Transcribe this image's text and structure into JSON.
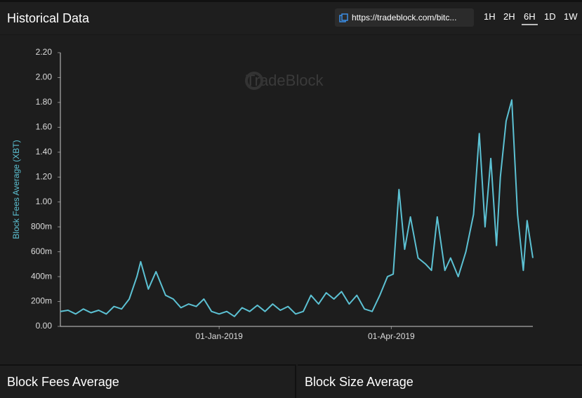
{
  "header": {
    "title": "Historical Data",
    "url": "https://tradeblock.com/bitc...",
    "ranges": [
      "1H",
      "2H",
      "6H",
      "1D",
      "1W"
    ],
    "selected_range": "6H"
  },
  "watermark": "TradeBlock",
  "chart_data": {
    "type": "line",
    "y_label": "Block Fees Average (XBT)",
    "x": [
      "2018-10-10",
      "2018-10-14",
      "2018-10-18",
      "2018-10-22",
      "2018-10-26",
      "2018-10-30",
      "2018-11-03",
      "2018-11-07",
      "2018-11-11",
      "2018-11-15",
      "2018-11-19",
      "2018-11-21",
      "2018-11-25",
      "2018-11-29",
      "2018-12-04",
      "2018-12-08",
      "2018-12-12",
      "2018-12-16",
      "2018-12-20",
      "2018-12-24",
      "2018-12-28",
      "2019-01-01",
      "2019-01-05",
      "2019-01-09",
      "2019-01-13",
      "2019-01-17",
      "2019-01-21",
      "2019-01-25",
      "2019-01-29",
      "2019-02-02",
      "2019-02-06",
      "2019-02-10",
      "2019-02-14",
      "2019-02-18",
      "2019-02-22",
      "2019-02-26",
      "2019-03-02",
      "2019-03-06",
      "2019-03-10",
      "2019-03-14",
      "2019-03-18",
      "2019-03-22",
      "2019-03-26",
      "2019-03-30",
      "2019-04-02",
      "2019-04-05",
      "2019-04-08",
      "2019-04-11",
      "2019-04-15",
      "2019-04-19",
      "2019-04-22",
      "2019-04-25",
      "2019-04-29",
      "2019-05-02",
      "2019-05-06",
      "2019-05-10",
      "2019-05-14",
      "2019-05-17",
      "2019-05-20",
      "2019-05-23",
      "2019-05-26",
      "2019-05-28",
      "2019-05-31",
      "2019-06-03",
      "2019-06-06",
      "2019-06-09",
      "2019-06-11",
      "2019-06-14"
    ],
    "series": [
      {
        "name": "Block Fees Average",
        "color": "#5cc1d3",
        "values": [
          0.12,
          0.13,
          0.1,
          0.14,
          0.11,
          0.13,
          0.1,
          0.16,
          0.14,
          0.22,
          0.4,
          0.52,
          0.3,
          0.44,
          0.25,
          0.22,
          0.15,
          0.18,
          0.16,
          0.22,
          0.12,
          0.1,
          0.12,
          0.08,
          0.15,
          0.12,
          0.17,
          0.12,
          0.18,
          0.13,
          0.16,
          0.1,
          0.12,
          0.25,
          0.18,
          0.27,
          0.22,
          0.28,
          0.18,
          0.25,
          0.14,
          0.12,
          0.25,
          0.4,
          0.42,
          1.1,
          0.62,
          0.88,
          0.55,
          0.5,
          0.45,
          0.88,
          0.45,
          0.55,
          0.4,
          0.6,
          0.9,
          1.55,
          0.8,
          1.35,
          0.65,
          1.2,
          1.65,
          1.82,
          0.9,
          0.45,
          0.85,
          0.55
        ]
      }
    ],
    "xlim": [
      "2018-10-10",
      "2019-06-14"
    ],
    "xticks": [
      {
        "value": "2019-01-01",
        "label": "01-Jan-2019"
      },
      {
        "value": "2019-04-01",
        "label": "01-Apr-2019"
      }
    ],
    "ylim": [
      0,
      2.2
    ],
    "yticks": [
      {
        "value": 0,
        "label": "0.00"
      },
      {
        "value": 0.2,
        "label": "200m"
      },
      {
        "value": 0.4,
        "label": "400m"
      },
      {
        "value": 0.6,
        "label": "600m"
      },
      {
        "value": 0.8,
        "label": "800m"
      },
      {
        "value": 1.0,
        "label": "1.00"
      },
      {
        "value": 1.2,
        "label": "1.20"
      },
      {
        "value": 1.4,
        "label": "1.40"
      },
      {
        "value": 1.6,
        "label": "1.60"
      },
      {
        "value": 1.8,
        "label": "1.80"
      },
      {
        "value": 2.0,
        "label": "2.00"
      },
      {
        "value": 2.2,
        "label": "2.20"
      }
    ]
  },
  "panels": [
    "Block Fees Average",
    "Block Size Average"
  ]
}
